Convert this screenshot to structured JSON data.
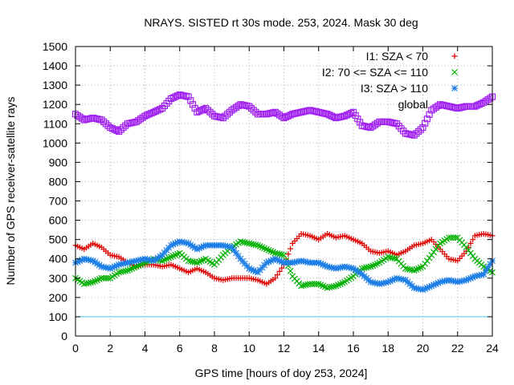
{
  "chart_data": {
    "type": "scatter",
    "title": "NRAYS. SISTED rt 30s mode. 253, 2024. Mask 30 deg",
    "xlabel": "GPS time [hours of doy 253, 2024]",
    "ylabel": "Number of GPS receiver-satellite rays",
    "xlim": [
      0,
      24
    ],
    "ylim": [
      0,
      1500
    ],
    "xticks": [
      "0",
      "2",
      "4",
      "6",
      "8",
      "10",
      "12",
      "14",
      "16",
      "18",
      "20",
      "22",
      "24"
    ],
    "yticks": [
      "0",
      "100",
      "200",
      "300",
      "400",
      "500",
      "600",
      "700",
      "800",
      "900",
      "1000",
      "1100",
      "1200",
      "1300",
      "1400",
      "1500"
    ],
    "grid": true,
    "legend_position": "top-right",
    "reference_line": {
      "y": 100,
      "color": "#40d0e0"
    },
    "series": [
      {
        "name": "I1: SZA < 70",
        "marker": "+",
        "color": "#e00000",
        "x": [
          0,
          0.5,
          1,
          1.5,
          2,
          2.5,
          3,
          3.5,
          4,
          4.5,
          5,
          5.5,
          6,
          6.5,
          7,
          7.5,
          8,
          8.5,
          9,
          9.5,
          10,
          10.5,
          11,
          11.5,
          12,
          12.5,
          13,
          13.5,
          14,
          14.5,
          15,
          15.5,
          16,
          16.5,
          17,
          17.5,
          18,
          18.5,
          19,
          19.5,
          20,
          20.5,
          21,
          21.5,
          22,
          22.5,
          23,
          23.5,
          24
        ],
        "y": [
          470,
          450,
          480,
          460,
          420,
          410,
          380,
          360,
          370,
          370,
          360,
          370,
          350,
          330,
          350,
          330,
          300,
          290,
          300,
          300,
          300,
          290,
          270,
          300,
          370,
          480,
          530,
          520,
          500,
          530,
          510,
          520,
          500,
          480,
          440,
          430,
          440,
          420,
          440,
          470,
          480,
          500,
          450,
          400,
          390,
          440,
          520,
          530,
          520
        ]
      },
      {
        "name": "I2: 70 <= SZA <= 110",
        "marker": "x",
        "color": "#00b000",
        "x": [
          0,
          0.5,
          1,
          1.5,
          2,
          2.5,
          3,
          3.5,
          4,
          4.5,
          5,
          5.5,
          6,
          6.5,
          7,
          7.5,
          8,
          8.5,
          9,
          9.5,
          10,
          10.5,
          11,
          11.5,
          12,
          12.5,
          13,
          13.5,
          14,
          14.5,
          15,
          15.5,
          16,
          16.5,
          17,
          17.5,
          18,
          18.5,
          19,
          19.5,
          20,
          20.5,
          21,
          21.5,
          22,
          22.5,
          23,
          23.5,
          24
        ],
        "y": [
          300,
          270,
          280,
          300,
          300,
          330,
          340,
          360,
          380,
          400,
          390,
          410,
          430,
          390,
          380,
          400,
          370,
          420,
          460,
          490,
          480,
          470,
          450,
          430,
          420,
          310,
          260,
          270,
          270,
          250,
          260,
          280,
          310,
          350,
          360,
          380,
          410,
          400,
          350,
          340,
          360,
          420,
          480,
          510,
          510,
          460,
          400,
          360,
          330
        ]
      },
      {
        "name": "I3: SZA > 110",
        "marker": "*",
        "color": "#1e7fe6",
        "x": [
          0,
          0.5,
          1,
          1.5,
          2,
          2.5,
          3,
          3.5,
          4,
          4.5,
          5,
          5.5,
          6,
          6.5,
          7,
          7.5,
          8,
          8.5,
          9,
          9.5,
          10,
          10.5,
          11,
          11.5,
          12,
          12.5,
          13,
          13.5,
          14,
          14.5,
          15,
          15.5,
          16,
          16.5,
          17,
          17.5,
          18,
          18.5,
          19,
          19.5,
          20,
          20.5,
          21,
          21.5,
          22,
          22.5,
          23,
          23.5,
          24
        ],
        "y": [
          380,
          400,
          390,
          360,
          350,
          370,
          380,
          390,
          400,
          390,
          420,
          470,
          490,
          480,
          450,
          470,
          470,
          470,
          460,
          400,
          350,
          330,
          380,
          400,
          380,
          380,
          390,
          380,
          380,
          360,
          350,
          360,
          350,
          320,
          280,
          270,
          280,
          300,
          290,
          250,
          240,
          260,
          280,
          290,
          280,
          290,
          310,
          320,
          390
        ]
      },
      {
        "name": "global",
        "marker": "square",
        "color": "#a020f0",
        "x": [
          0,
          0.5,
          1,
          1.5,
          2,
          2.5,
          3,
          3.5,
          4,
          4.5,
          5,
          5.5,
          6,
          6.5,
          7,
          7.5,
          8,
          8.5,
          9,
          9.5,
          10,
          10.5,
          11,
          11.5,
          12,
          12.5,
          13,
          13.5,
          14,
          14.5,
          15,
          15.5,
          16,
          16.5,
          17,
          17.5,
          18,
          18.5,
          19,
          19.5,
          20,
          20.5,
          21,
          21.5,
          22,
          22.5,
          23,
          23.5,
          24
        ],
        "y": [
          1150,
          1120,
          1130,
          1120,
          1080,
          1060,
          1100,
          1110,
          1140,
          1160,
          1180,
          1230,
          1250,
          1240,
          1160,
          1180,
          1140,
          1130,
          1170,
          1200,
          1190,
          1150,
          1150,
          1160,
          1130,
          1150,
          1160,
          1170,
          1160,
          1150,
          1130,
          1140,
          1160,
          1090,
          1080,
          1110,
          1110,
          1100,
          1050,
          1040,
          1080,
          1170,
          1200,
          1190,
          1180,
          1190,
          1190,
          1210,
          1240
        ]
      }
    ]
  }
}
